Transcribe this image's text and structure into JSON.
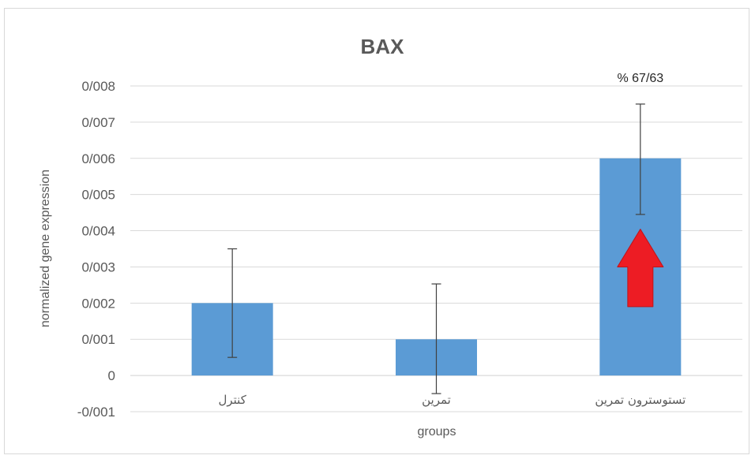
{
  "chart_data": {
    "type": "bar",
    "title": "BAX",
    "xlabel": "groups",
    "ylabel": "normalized gene expression",
    "categories": [
      "کنترل",
      "تمرین",
      "تستوسترون تمرین"
    ],
    "values": [
      0.002,
      0.001,
      0.006
    ],
    "error_low": [
      0.0005,
      -0.0005,
      0.00445
    ],
    "error_high": [
      0.0035,
      0.00253,
      0.0075
    ],
    "ylim": [
      -0.001,
      0.008
    ],
    "yticks": [
      -0.001,
      0,
      0.001,
      0.002,
      0.003,
      0.004,
      0.005,
      0.006,
      0.007,
      0.008
    ],
    "ytick_labels": [
      "-0/001",
      "0",
      "0/001",
      "0/002",
      "0/003",
      "0/004",
      "0/005",
      "0/006",
      "0/007",
      "0/008"
    ],
    "grid": true,
    "legend": "none",
    "bar_color": "#5b9bd5",
    "annotation": {
      "text": "% 67/63",
      "category_index": 2
    },
    "arrow": {
      "direction": "up",
      "color": "#ed1c24",
      "category_index": 2
    }
  }
}
